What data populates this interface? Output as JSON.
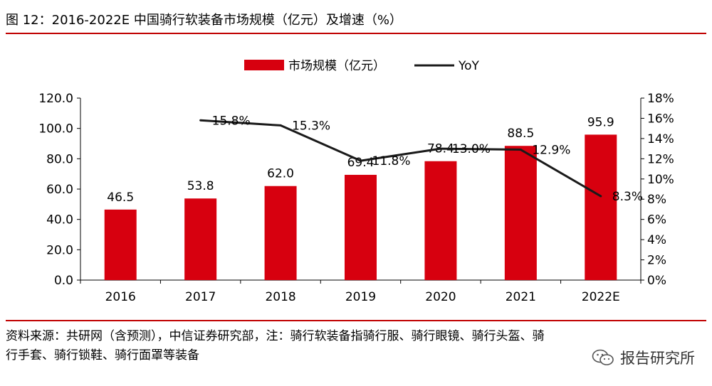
{
  "figure": {
    "title": "图 12：2016-2022E 中国骑行软装备市场规模（亿元）及增速（%）",
    "source": "资料来源：共研网（含预测），中信证券研究部，注：骑行软装备指骑行服、骑行眼镜、骑行头盔、骑行手套、骑行锁鞋、骑行面罩等装备",
    "watermark": "报告研究所",
    "watermark_icon": "wechat-icon"
  },
  "chart_data": {
    "type": "bar",
    "categories": [
      "2016",
      "2017",
      "2018",
      "2019",
      "2020",
      "2021",
      "2022E"
    ],
    "series": [
      {
        "name": "市场规模（亿元）",
        "type": "bar",
        "axis": "left",
        "color": "#d7000f",
        "values": [
          46.5,
          53.8,
          62.0,
          69.4,
          78.4,
          88.5,
          95.9
        ],
        "labels": [
          "46.5",
          "53.8",
          "62.0",
          "69.4",
          "78.4",
          "88.5",
          "95.9"
        ]
      },
      {
        "name": "YoY",
        "type": "line",
        "axis": "right",
        "color": "#1a1a1a",
        "values": [
          null,
          15.8,
          15.3,
          11.8,
          13.0,
          12.9,
          8.3
        ],
        "labels": [
          "",
          "15.8%",
          "15.3%",
          "11.8%",
          "13.0%",
          "12.9%",
          "8.3%"
        ]
      }
    ],
    "y_left": {
      "min": 0,
      "max": 120,
      "step": 20,
      "ticks": [
        "0.0",
        "20.0",
        "40.0",
        "60.0",
        "80.0",
        "100.0",
        "120.0"
      ]
    },
    "y_right": {
      "min": 0,
      "max": 18,
      "step": 2,
      "ticks": [
        "0%",
        "2%",
        "4%",
        "6%",
        "8%",
        "10%",
        "12%",
        "14%",
        "16%",
        "18%"
      ]
    },
    "legend": "top-center",
    "grid": false,
    "xlabel": "",
    "ylabel": ""
  }
}
